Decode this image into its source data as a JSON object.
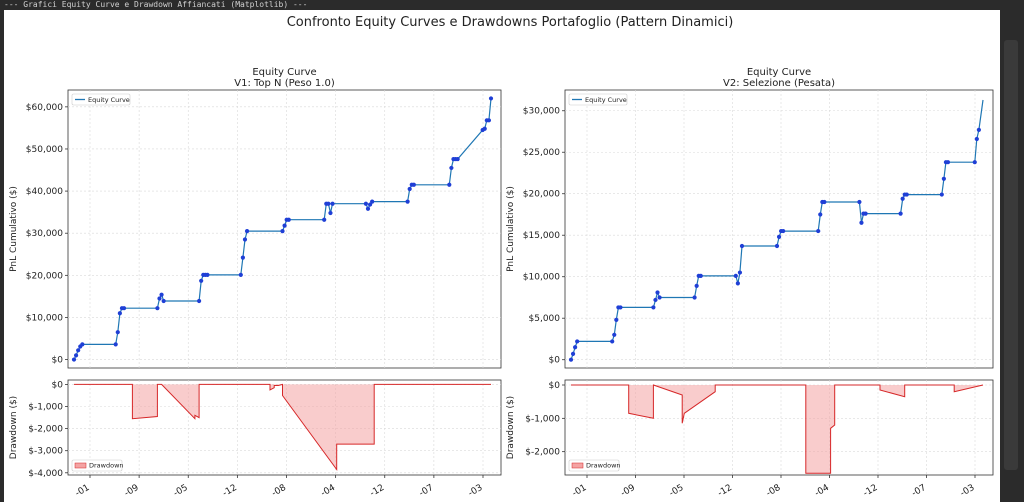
{
  "window": {
    "title": "--- Grafici Equity Curve e Drawdown Affiancati (Matplotlib) ---"
  },
  "figure": {
    "suptitle": "Confronto Equity Curves e Drawdowns Portafoglio (Pattern Dinamici)"
  },
  "colors": {
    "equity_line": "#1f77b4",
    "equity_marker": "#1f3fd6",
    "drawdown_line": "#d62728",
    "drawdown_fill": "#f4a3a3",
    "grid": "#d9d9d9"
  },
  "chart_data": [
    {
      "type": "line",
      "panel": "equity",
      "title": "Equity Curve",
      "subtitle": "V1: Top N (Peso 1.0)",
      "xlabel": "",
      "ylabel": "PnL Cumulativo ($)",
      "ylim": [
        -2000,
        64000
      ],
      "yticks": [
        0,
        10000,
        20000,
        30000,
        40000,
        50000,
        60000
      ],
      "ytick_labels": [
        "$0",
        "$10,000",
        "$20,000",
        "$30,000",
        "$40,000",
        "$50,000",
        "$60,000"
      ],
      "xlim": [
        0,
        100
      ],
      "grid": true,
      "legend": {
        "entries": [
          "Equity Curve"
        ],
        "position": "top-left"
      },
      "series": [
        {
          "name": "Equity Curve",
          "x": [
            0,
            0.5,
            1,
            1.5,
            2,
            10,
            10.5,
            11,
            11.5,
            12,
            20,
            20.5,
            21,
            21.5,
            30,
            30.5,
            31,
            31.5,
            32,
            40,
            40.5,
            41,
            41.5,
            50,
            50.5,
            51,
            51.5,
            60,
            60.5,
            61,
            61.5,
            62,
            70,
            70.5,
            71,
            71.5,
            80,
            80.5,
            81,
            81.5,
            90,
            90.5,
            91,
            91.5,
            92,
            98,
            98.5,
            99,
            99.5,
            100
          ]
        },
        {
          "name": "Equity Curve y",
          "y": [
            0,
            1000,
            2200,
            3100,
            3600,
            3600,
            6500,
            11000,
            12200,
            12200,
            12200,
            14500,
            15400,
            13900,
            13900,
            18700,
            20100,
            20100,
            20100,
            20100,
            24200,
            28500,
            30500,
            30500,
            31800,
            33200,
            33200,
            33200,
            37000,
            37000,
            34800,
            37000,
            37000,
            35800,
            36800,
            37500,
            37500,
            40500,
            41500,
            41500,
            41500,
            45500,
            47600,
            47600,
            47600,
            54500,
            54800,
            56800,
            56800,
            62000
          ]
        }
      ]
    },
    {
      "type": "area",
      "panel": "drawdown",
      "title": "",
      "xlabel": "",
      "ylabel": "Drawdown ($)",
      "ylim": [
        -4100,
        200
      ],
      "yticks": [
        0,
        -1000,
        -2000,
        -3000,
        -4000
      ],
      "ytick_labels": [
        "$0",
        "$-1,000",
        "$-2,000",
        "$-3,000",
        "$-4,000"
      ],
      "xtick_labels": [
        "-01",
        "-09",
        "-05",
        "-12",
        "-08",
        "-04",
        "-12",
        "-07",
        "-03"
      ],
      "xlim": [
        0,
        100
      ],
      "grid": true,
      "legend": {
        "entries": [
          "Drawdown"
        ],
        "position": "bottom-left"
      },
      "series": [
        {
          "name": "Drawdown",
          "x": [
            0,
            14,
            14,
            20,
            20,
            21,
            21,
            29,
            29,
            30,
            30,
            30.1,
            47,
            47,
            48,
            48,
            49,
            49,
            50,
            50,
            63,
            63,
            63,
            72,
            72,
            75,
            75,
            100
          ],
          "y": [
            0,
            0,
            -1550,
            -1450,
            0,
            0,
            0,
            -1550,
            -1400,
            -1500,
            0,
            0,
            0,
            -250,
            -150,
            -50,
            -50,
            -50,
            0,
            -500,
            -3850,
            -3850,
            -2700,
            -2700,
            0,
            0,
            0,
            0
          ]
        }
      ]
    },
    {
      "type": "line",
      "panel": "equity",
      "title": "Equity Curve",
      "subtitle": "V2: Selezione (Pesata)",
      "xlabel": "",
      "ylabel": "PnL Cumulativo ($)",
      "ylim": [
        -1000,
        32500
      ],
      "yticks": [
        0,
        5000,
        10000,
        15000,
        20000,
        25000,
        30000
      ],
      "ytick_labels": [
        "$0",
        "$5,000",
        "$10,000",
        "$15,000",
        "$20,000",
        "$25,000",
        "$30,000"
      ],
      "xlim": [
        0,
        100
      ],
      "grid": true,
      "legend": {
        "entries": [
          "Equity Curve"
        ],
        "position": "top-left"
      },
      "series": [
        {
          "name": "Equity Curve",
          "x": [
            0,
            0.5,
            1,
            1.5,
            10,
            10.5,
            11,
            11.5,
            12,
            20,
            20.5,
            21,
            21.5,
            30,
            30.5,
            31,
            31.5,
            40,
            40.5,
            41,
            41.5,
            50,
            50.5,
            51,
            51.5,
            60,
            60.5,
            61,
            61.5,
            70,
            70.5,
            71,
            71.5,
            80,
            80.5,
            81,
            81.5,
            90,
            90.5,
            91,
            91.5,
            98,
            98.5,
            99,
            100
          ]
        },
        {
          "name": "Equity Curve y",
          "y": [
            0,
            700,
            1500,
            2200,
            2200,
            3000,
            4800,
            6300,
            6300,
            6300,
            7200,
            8100,
            7500,
            7500,
            8900,
            10100,
            10100,
            10100,
            9200,
            10500,
            13700,
            13700,
            14800,
            15500,
            15500,
            15500,
            17500,
            19000,
            19000,
            19000,
            16500,
            17600,
            17600,
            17600,
            19400,
            19900,
            19900,
            19900,
            21800,
            23800,
            23800,
            23800,
            26600,
            27700,
            31300
          ]
        }
      ]
    },
    {
      "type": "area",
      "panel": "drawdown",
      "title": "",
      "xlabel": "",
      "ylabel": "Drawdown ($)",
      "ylim": [
        -2700,
        150
      ],
      "yticks": [
        0,
        -1000,
        -2000
      ],
      "ytick_labels": [
        "$0",
        "$-1,000",
        "$-2,000"
      ],
      "xtick_labels": [
        "-01",
        "-09",
        "-05",
        "-12",
        "-08",
        "-04",
        "-12",
        "-07",
        "-03"
      ],
      "xlim": [
        0,
        100
      ],
      "grid": true,
      "legend": {
        "entries": [
          "Drawdown"
        ],
        "position": "bottom-left"
      },
      "series": [
        {
          "name": "Drawdown",
          "x": [
            0,
            14,
            14,
            20,
            20,
            27,
            27,
            27.5,
            27.5,
            35,
            35,
            50,
            50,
            57,
            57,
            63,
            63,
            64,
            64,
            75,
            75,
            81,
            81,
            93,
            93,
            100
          ],
          "y": [
            0,
            0,
            -850,
            -1000,
            0,
            -300,
            -1150,
            -850,
            -850,
            -200,
            0,
            0,
            0,
            0,
            -2650,
            -2650,
            -1300,
            -1200,
            0,
            0,
            -150,
            -350,
            0,
            0,
            -200,
            0
          ]
        }
      ]
    }
  ]
}
